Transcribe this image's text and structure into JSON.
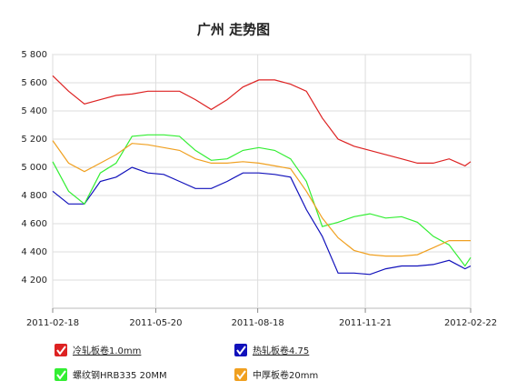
{
  "chart_data": {
    "type": "line",
    "title": "广州 走势图",
    "x": [
      "2011-02-18",
      "2011-03-04",
      "2011-03-18",
      "2011-04-01",
      "2011-04-15",
      "2011-04-29",
      "2011-05-13",
      "2011-05-27",
      "2011-06-10",
      "2011-06-24",
      "2011-07-08",
      "2011-07-22",
      "2011-08-05",
      "2011-08-19",
      "2011-09-02",
      "2011-09-16",
      "2011-09-30",
      "2011-10-14",
      "2011-10-28",
      "2011-11-11",
      "2011-11-25",
      "2011-12-09",
      "2011-12-23",
      "2012-01-06",
      "2012-01-20",
      "2012-02-03",
      "2012-02-17",
      "2012-02-22"
    ],
    "xlim": [
      "2011-02-18",
      "2012-02-22"
    ],
    "xticks": [
      "2011-02-18",
      "2011-05-20",
      "2011-08-18",
      "2011-11-21",
      "2012-02-22"
    ],
    "ylim": [
      4000,
      5800
    ],
    "yticks": [
      {
        "value": 4200,
        "label": "4 200"
      },
      {
        "value": 4400,
        "label": "4 400"
      },
      {
        "value": 4600,
        "label": "4 600"
      },
      {
        "value": 4800,
        "label": "4 800"
      },
      {
        "value": 5000,
        "label": "5 000"
      },
      {
        "value": 5200,
        "label": "5 200"
      },
      {
        "value": 5400,
        "label": "5 400"
      },
      {
        "value": 5600,
        "label": "5 600"
      },
      {
        "value": 5800,
        "label": "5 800"
      }
    ],
    "grid": true,
    "series": [
      {
        "name": "冷轧板卷1.0mm",
        "color": "#dd2222",
        "values": [
          5650,
          5540,
          5450,
          5480,
          5510,
          5520,
          5540,
          5540,
          5540,
          5480,
          5410,
          5480,
          5570,
          5620,
          5620,
          5590,
          5540,
          5350,
          5200,
          5150,
          5120,
          5090,
          5060,
          5030,
          5030,
          5060,
          5010,
          5040
        ]
      },
      {
        "name": "热轧板卷4.75",
        "color": "#1111bb",
        "values": [
          4830,
          4740,
          4740,
          4900,
          4930,
          5000,
          4960,
          4950,
          4900,
          4850,
          4850,
          4900,
          4960,
          4960,
          4950,
          4930,
          4700,
          4510,
          4250,
          4250,
          4240,
          4280,
          4300,
          4300,
          4310,
          4340,
          4280,
          4300
        ]
      },
      {
        "name": "螺纹钢HRB335 20MM",
        "color": "#33ee33",
        "values": [
          5040,
          4830,
          4740,
          4960,
          5030,
          5220,
          5230,
          5230,
          5220,
          5120,
          5050,
          5060,
          5120,
          5140,
          5120,
          5060,
          4900,
          4580,
          4610,
          4650,
          4670,
          4640,
          4650,
          4610,
          4510,
          4450,
          4300,
          4360
        ]
      },
      {
        "name": "中厚板卷20mm",
        "color": "#f0a020",
        "values": [
          5190,
          5030,
          4970,
          5030,
          5090,
          5170,
          5160,
          5140,
          5120,
          5060,
          5030,
          5030,
          5040,
          5030,
          5010,
          4990,
          4830,
          4640,
          4500,
          4410,
          4380,
          4370,
          4370,
          4380,
          4430,
          4480,
          4480,
          4480
        ]
      }
    ]
  }
}
